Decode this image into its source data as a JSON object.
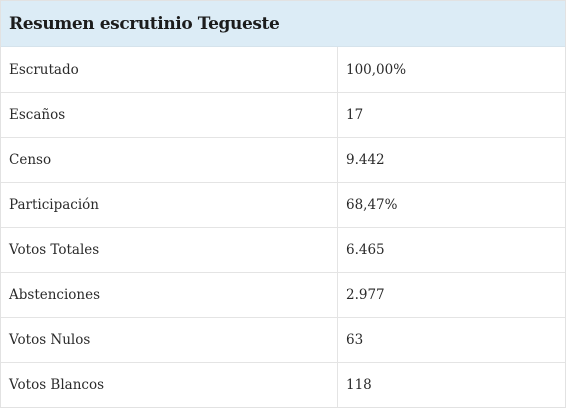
{
  "table": {
    "title": "Resumen escrutinio Tegueste",
    "rows": [
      {
        "label": "Escrutado",
        "value": "100,00%"
      },
      {
        "label": "Escaños",
        "value": "17"
      },
      {
        "label": "Censo",
        "value": "9.442"
      },
      {
        "label": "Participación",
        "value": "68,47%"
      },
      {
        "label": "Votos Totales",
        "value": "6.465"
      },
      {
        "label": "Abstenciones",
        "value": "2.977"
      },
      {
        "label": "Votos Nulos",
        "value": "63"
      },
      {
        "label": "Votos Blancos",
        "value": "118"
      }
    ]
  },
  "colors": {
    "header_background": "#dcecf6",
    "border": "#e4e4e4",
    "text": "#222222"
  }
}
